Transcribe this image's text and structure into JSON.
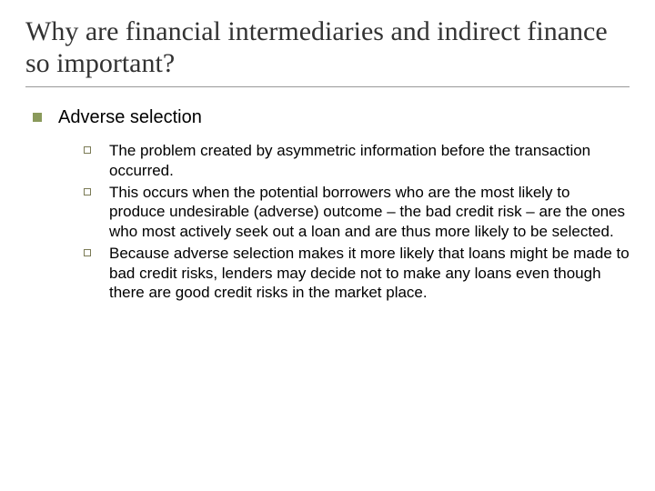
{
  "title": {
    "text": "Why are financial intermediaries and indirect finance so important?",
    "fontsize": 30,
    "color": "#333333",
    "underline_color": "#999999"
  },
  "level1": {
    "bullet_color": "#8a9a5b",
    "fontsize": 20,
    "label": "Adverse selection"
  },
  "sub": {
    "bullet_border_color": "#7a7a55",
    "fontsize": 17,
    "items": [
      "The problem created by asymmetric information before the transaction occurred.",
      "This occurs when the potential borrowers who are the most likely to produce undesirable (adverse) outcome – the bad credit risk – are the ones who most actively seek out a loan and are thus more likely to be selected.",
      "Because adverse selection makes it more likely  that loans might be made to bad credit risks, lenders may decide not to make any loans even though there are good credit risks in the market place."
    ]
  }
}
